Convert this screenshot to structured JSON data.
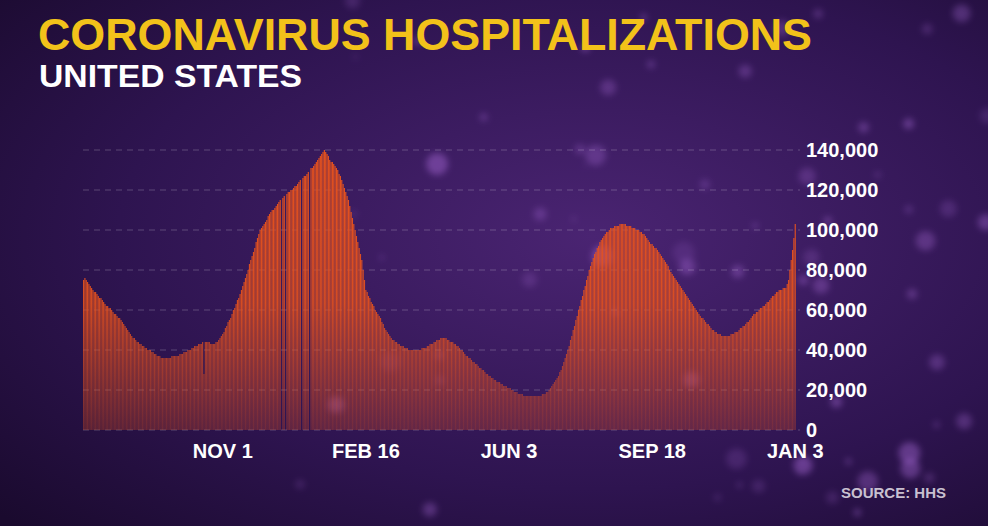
{
  "chart_data": {
    "type": "bar",
    "title": "CORONAVIRUS HOSPITALIZATIONS",
    "subtitle": "UNITED STATES",
    "source": "SOURCE: HHS",
    "color": "#e8521c",
    "grid": true,
    "ylim": [
      0,
      140000
    ],
    "yticks": [
      0,
      {
        "value": 20000,
        "label": "20,000"
      },
      {
        "value": 40000,
        "label": "40,000"
      },
      {
        "value": 60000,
        "label": "60,000"
      },
      {
        "value": 80000,
        "label": "80,000"
      },
      {
        "value": 100000,
        "label": "100,000"
      },
      {
        "value": 120000,
        "label": "120,000"
      },
      {
        "value": 140000,
        "label": "140,000"
      }
    ],
    "categories": [
      null,
      null,
      null,
      null,
      null,
      null,
      null,
      null,
      null,
      null,
      null,
      null,
      null,
      null,
      null,
      null,
      null,
      null,
      null,
      null,
      null,
      null,
      null,
      null,
      null,
      null,
      null,
      null,
      null,
      null,
      null,
      null,
      null,
      null,
      null,
      null,
      null,
      null,
      null,
      null,
      null,
      null,
      null,
      null,
      null,
      null,
      null,
      null,
      null,
      null,
      null,
      null,
      null,
      null,
      null,
      null,
      null,
      null,
      null,
      null,
      null,
      null,
      null,
      null,
      null,
      null,
      null,
      null,
      null,
      null,
      null,
      null,
      null,
      null,
      null,
      null,
      null,
      null,
      null,
      null,
      null,
      null,
      null,
      null,
      null,
      null,
      null,
      null,
      null,
      null,
      null,
      null,
      null,
      null,
      null,
      null,
      null,
      null,
      null,
      null,
      null,
      null,
      null,
      null,
      "NOV 1",
      null,
      null,
      null,
      null,
      null,
      null,
      null,
      null,
      null,
      null,
      null,
      null,
      null,
      null,
      null,
      null,
      null,
      null,
      null,
      null,
      null,
      null,
      null,
      null,
      null,
      null,
      null,
      null,
      null,
      null,
      null,
      null,
      null,
      null,
      null,
      null,
      null,
      null,
      null,
      null,
      null,
      null,
      null,
      null,
      null,
      null,
      null,
      null,
      null,
      null,
      null,
      null,
      null,
      null,
      null,
      null,
      null,
      null,
      null,
      null,
      null,
      null,
      null,
      null,
      null,
      null,
      null,
      null,
      null,
      null,
      null,
      null,
      null,
      null,
      null,
      null,
      null,
      null,
      null,
      null,
      null,
      null,
      null,
      null,
      null,
      null,
      null,
      null,
      null,
      null,
      null,
      null,
      null,
      null,
      null,
      null,
      null,
      null,
      null,
      null,
      null,
      null,
      null,
      null,
      null,
      null,
      "FEB 16",
      null,
      null,
      null,
      null,
      null,
      null,
      null,
      null,
      null,
      null,
      null,
      null,
      null,
      null,
      null,
      null,
      null,
      null,
      null,
      null,
      null,
      null,
      null,
      null,
      null,
      null,
      null,
      null,
      null,
      null,
      null,
      null,
      null,
      null,
      null,
      null,
      null,
      null,
      null,
      null,
      null,
      null,
      null,
      null,
      null,
      null,
      null,
      null,
      null,
      null,
      null,
      null,
      null,
      null,
      null,
      null,
      null,
      null,
      null,
      null,
      null,
      null,
      null,
      null,
      null,
      null,
      null,
      null,
      null,
      null,
      null,
      null,
      null,
      null,
      null,
      null,
      null,
      null,
      null,
      null,
      null,
      null,
      null,
      null,
      null,
      null,
      null,
      null,
      null,
      null,
      null,
      null,
      null,
      null,
      null,
      null,
      null,
      null,
      null,
      null,
      null,
      null,
      null,
      null,
      null,
      null,
      "JUN 3",
      null,
      null,
      null,
      null,
      null,
      null,
      null,
      null,
      null,
      null,
      null,
      null,
      null,
      null,
      null,
      null,
      null,
      null,
      null,
      null,
      null,
      null,
      null,
      null,
      null,
      null,
      null,
      null,
      null,
      null,
      null,
      null,
      null,
      null,
      null,
      null,
      null,
      null,
      null,
      null,
      null,
      null,
      null,
      null,
      null,
      null,
      null,
      null,
      null,
      null,
      null,
      null,
      null,
      null,
      null,
      null,
      null,
      null,
      null,
      null,
      null,
      null,
      null,
      null,
      null,
      null,
      null,
      null,
      null,
      null,
      null,
      null,
      null,
      null,
      null,
      null,
      null,
      null,
      null,
      null,
      null,
      null,
      null,
      null,
      null,
      null,
      null,
      null,
      null,
      null,
      null,
      null,
      null,
      null,
      null,
      null,
      null,
      null,
      null,
      null,
      null,
      null,
      null,
      null,
      null,
      null,
      "SEP 18",
      null,
      null,
      null,
      null,
      null,
      null,
      null,
      null,
      null,
      null,
      null,
      null,
      null,
      null,
      null,
      null,
      null,
      null,
      null,
      null,
      null,
      null,
      null,
      null,
      null,
      null,
      null,
      null,
      null,
      null,
      null,
      null,
      null,
      null,
      null,
      null,
      null,
      null,
      null,
      null,
      null,
      null,
      null,
      null,
      null,
      null,
      null,
      null,
      null,
      null,
      null,
      null,
      null,
      null,
      null,
      null,
      null,
      null,
      null,
      null,
      null,
      null,
      null,
      null,
      null,
      null,
      null,
      null,
      null,
      null,
      null,
      null,
      null,
      null,
      null,
      null,
      null,
      null,
      null,
      null,
      null,
      null,
      null,
      null,
      null,
      null,
      null,
      null,
      null,
      null,
      null,
      null,
      null,
      null,
      null,
      null,
      null,
      null,
      null,
      null,
      null,
      null,
      null,
      null,
      null,
      null,
      "JAN 3"
    ],
    "values": [
      75000,
      76000,
      75000,
      74000,
      73000,
      72000,
      71000,
      70000,
      69000,
      69000,
      68000,
      67000,
      66000,
      66000,
      65000,
      64000,
      63000,
      62000,
      62000,
      61000,
      61000,
      60000,
      59000,
      58000,
      58000,
      57000,
      56000,
      56000,
      55000,
      54000,
      53000,
      52000,
      51000,
      50000,
      49000,
      48000,
      47000,
      46000,
      46000,
      45000,
      44000,
      44000,
      43000,
      43000,
      42000,
      42000,
      41000,
      41000,
      40000,
      40000,
      40000,
      39000,
      39000,
      38000,
      38000,
      37000,
      37000,
      37000,
      36000,
      36000,
      36000,
      36000,
      36000,
      36000,
      36000,
      36000,
      37000,
      37000,
      37000,
      37000,
      37000,
      37000,
      38000,
      38000,
      38000,
      39000,
      39000,
      39000,
      40000,
      40000,
      40000,
      41000,
      41000,
      42000,
      42000,
      42000,
      43000,
      43000,
      43000,
      44000,
      28000,
      44000,
      44000,
      44000,
      44000,
      43000,
      43000,
      43000,
      43000,
      44000,
      44000,
      45000,
      46000,
      47000,
      48000,
      49000,
      51000,
      52000,
      54000,
      55000,
      56000,
      58000,
      60000,
      61000,
      63000,
      65000,
      66000,
      68000,
      70000,
      72000,
      74000,
      76000,
      78000,
      80000,
      83000,
      85000,
      87000,
      89000,
      91000,
      94000,
      96000,
      98000,
      100000,
      101000,
      102000,
      103000,
      104000,
      105000,
      107000,
      108000,
      109000,
      110000,
      110000,
      111000,
      112000,
      113000,
      114000,
      115000,
      0,
      116000,
      117000,
      0,
      118000,
      119000,
      119000,
      120000,
      120000,
      121000,
      122000,
      122000,
      123000,
      124000,
      125000,
      0,
      126000,
      127000,
      127000,
      128000,
      129000,
      0,
      131000,
      131000,
      132000,
      133000,
      134000,
      135000,
      136000,
      137000,
      138000,
      139000,
      140000,
      139000,
      138000,
      137000,
      135000,
      134000,
      134000,
      133000,
      132000,
      131000,
      130000,
      128000,
      127000,
      125000,
      123000,
      121000,
      119000,
      117000,
      115000,
      112000,
      109000,
      106000,
      103000,
      100000,
      97000,
      94000,
      91000,
      88000,
      85000,
      80000,
      75000,
      70000,
      69000,
      67000,
      66000,
      64000,
      63000,
      62000,
      60000,
      59000,
      58000,
      57000,
      56000,
      54000,
      53000,
      51000,
      50000,
      49000,
      48000,
      47000,
      46000,
      45000,
      45000,
      44000,
      44000,
      43000,
      43000,
      42000,
      42000,
      42000,
      41000,
      41000,
      41000,
      40000,
      40000,
      40000,
      40000,
      40000,
      40000,
      40000,
      40000,
      40000,
      40000,
      41000,
      41000,
      41000,
      41000,
      42000,
      42000,
      43000,
      43000,
      43000,
      44000,
      44000,
      45000,
      45000,
      45000,
      46000,
      46000,
      46000,
      46000,
      46000,
      45000,
      45000,
      44000,
      44000,
      44000,
      43000,
      43000,
      42000,
      42000,
      41000,
      40000,
      40000,
      39000,
      38000,
      37000,
      37000,
      36000,
      36000,
      35000,
      34000,
      34000,
      33000,
      33000,
      32000,
      31000,
      31000,
      30000,
      30000,
      29000,
      28000,
      28000,
      27000,
      27000,
      26000,
      26000,
      25000,
      25000,
      24000,
      24000,
      24000,
      23000,
      23000,
      22000,
      22000,
      22000,
      21000,
      21000,
      21000,
      20000,
      20000,
      19000,
      19000,
      19000,
      18000,
      18000,
      18000,
      18000,
      17000,
      17000,
      17000,
      17000,
      17000,
      17000,
      17000,
      17000,
      17000,
      17000,
      17000,
      17000,
      17000,
      17000,
      18000,
      18000,
      18000,
      19000,
      19000,
      20000,
      21000,
      22000,
      23000,
      24000,
      25000,
      26000,
      27000,
      29000,
      30000,
      32000,
      34000,
      36000,
      38000,
      40000,
      42000,
      45000,
      47000,
      50000,
      52000,
      55000,
      57000,
      60000,
      62000,
      65000,
      67000,
      70000,
      72000,
      75000,
      77000,
      80000,
      82000,
      84000,
      86000,
      88000,
      89000,
      91000,
      92000,
      94000,
      95000,
      96000,
      97000,
      98000,
      99000,
      99000,
      100000,
      101000,
      101000,
      101000,
      102000,
      102000,
      102000,
      102000,
      103000,
      103000,
      103000,
      103000,
      103000,
      102000,
      102000,
      102000,
      102000,
      101000,
      101000,
      101000,
      100000,
      100000,
      100000,
      99000,
      99000,
      98000,
      98000,
      97000,
      96000,
      95000,
      94000,
      93000,
      93000,
      92000,
      91000,
      91000,
      90000,
      89000,
      88000,
      87000,
      86000,
      85000,
      84000,
      83000,
      82000,
      80000,
      79000,
      78000,
      77000,
      76000,
      75000,
      74000,
      73000,
      72000,
      71000,
      70000,
      69000,
      68000,
      67000,
      66000,
      65000,
      64000,
      63000,
      62000,
      61000,
      60000,
      59000,
      58000,
      57000,
      56000,
      56000,
      55000,
      54000,
      53000,
      53000,
      52000,
      51000,
      50000,
      50000,
      49000,
      49000,
      48000,
      48000,
      48000,
      47000,
      47000,
      47000,
      47000,
      47000,
      47000,
      47000,
      48000,
      48000,
      48000,
      49000,
      49000,
      49000,
      50000,
      51000,
      51000,
      52000,
      52000,
      53000,
      54000,
      54000,
      55000,
      56000,
      57000,
      58000,
      58000,
      59000,
      59000,
      60000,
      61000,
      61000,
      62000,
      62000,
      63000,
      64000,
      64000,
      65000,
      66000,
      67000,
      67000,
      68000,
      69000,
      69000,
      70000,
      70000,
      70000,
      71000,
      71000,
      71000,
      73000,
      75000,
      80000,
      85000,
      90000,
      96000,
      103000
    ]
  }
}
